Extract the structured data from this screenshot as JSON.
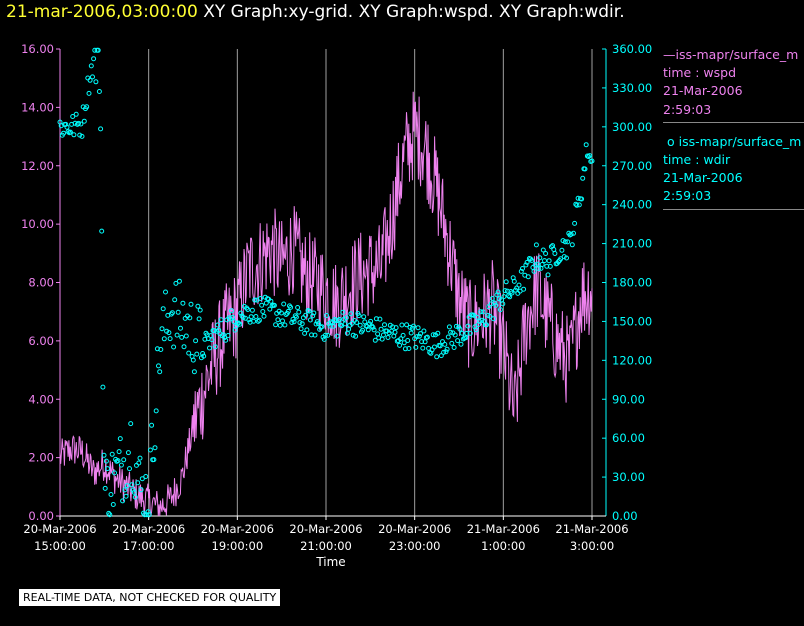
{
  "header": {
    "timestamp": "21-mar-2006,03:00:00",
    "graphs": "XY Graph:xy-grid.  XY Graph:wspd.  XY Graph:wdir."
  },
  "legend": {
    "series1": {
      "name": "iss-mapr/surface_m",
      "line1": "time : wspd",
      "line2": "21-Mar-2006",
      "line3": "2:59:03"
    },
    "series2": {
      "name": "iss-mapr/surface_m",
      "line1": "time : wdir",
      "line2": "21-Mar-2006",
      "line3": "2:59:03"
    }
  },
  "notice": "REAL-TIME DATA, NOT CHECKED FOR QUALITY",
  "colors": {
    "wspd": "#ee82ee",
    "wdir": "#00ffff",
    "grid": "#a0a0a0",
    "axis_text": "#ffffff",
    "title_time": "#ffff33"
  },
  "chart_data": {
    "type": "line",
    "xlabel": "Time",
    "x_unit": "hours since 20-Mar-2006 15:00:00",
    "xlim": [
      0,
      12.1
    ],
    "x_ticks": [
      {
        "value": 0,
        "date": "20-Mar-2006",
        "time": "15:00:00"
      },
      {
        "value": 2,
        "date": "20-Mar-2006",
        "time": "17:00:00"
      },
      {
        "value": 4,
        "date": "20-Mar-2006",
        "time": "19:00:00"
      },
      {
        "value": 6,
        "date": "20-Mar-2006",
        "time": "21:00:00"
      },
      {
        "value": 8,
        "date": "20-Mar-2006",
        "time": "23:00:00"
      },
      {
        "value": 10,
        "date": "21-Mar-2006",
        "time": "1:00:00"
      },
      {
        "value": 12,
        "date": "21-Mar-2006",
        "time": "3:00:00"
      }
    ],
    "y_left": {
      "label": "wspd",
      "ylim": [
        0,
        16
      ],
      "ticks": [
        "0.00",
        "2.00",
        "4.00",
        "6.00",
        "8.00",
        "10.00",
        "12.00",
        "14.00",
        "16.00"
      ]
    },
    "y_right": {
      "label": "wdir",
      "ylim": [
        0,
        360
      ],
      "ticks": [
        "0.00",
        "30.00",
        "60.00",
        "90.00",
        "120.00",
        "150.00",
        "180.00",
        "210.00",
        "240.00",
        "270.00",
        "300.00",
        "330.00",
        "360.00"
      ]
    },
    "series": [
      {
        "name": "wspd",
        "axis": "left",
        "style": "line",
        "x": [
          0,
          0.25,
          0.5,
          0.75,
          1.0,
          1.25,
          1.5,
          1.75,
          2.0,
          2.25,
          2.5,
          2.75,
          3.0,
          3.25,
          3.5,
          3.75,
          4.0,
          4.25,
          4.5,
          4.75,
          5.0,
          5.25,
          5.5,
          5.75,
          6.0,
          6.25,
          6.5,
          6.75,
          7.0,
          7.25,
          7.5,
          7.75,
          8.0,
          8.25,
          8.5,
          8.75,
          9.0,
          9.25,
          9.5,
          9.75,
          10.0,
          10.25,
          10.5,
          10.75,
          11.0,
          11.25,
          11.5,
          11.75,
          12.0
        ],
        "y": [
          2.0,
          2.3,
          2.2,
          1.5,
          1.8,
          1.3,
          1.0,
          0.7,
          0.5,
          0.3,
          0.6,
          1.3,
          3.0,
          4.3,
          5.5,
          6.4,
          7.0,
          8.4,
          8.7,
          9.2,
          8.6,
          9.2,
          8.3,
          8.0,
          7.7,
          7.2,
          7.8,
          8.2,
          8.4,
          8.5,
          10.3,
          12.2,
          13.2,
          12.6,
          11.2,
          9.4,
          7.4,
          6.5,
          6.8,
          7.2,
          5.8,
          3.5,
          6.5,
          7.8,
          6.8,
          5.8,
          5.2,
          7.5,
          7.8
        ],
        "noise": 1.0,
        "spike_max": 16.0
      },
      {
        "name": "wdir",
        "axis": "right",
        "style": "scatter",
        "x": [
          0,
          0.25,
          0.5,
          0.65,
          0.75,
          0.8,
          0.9,
          1.0,
          1.25,
          1.5,
          1.6,
          1.75,
          1.85,
          2.0,
          2.25,
          2.5,
          2.75,
          3.0,
          3.25,
          3.5,
          3.75,
          4.0,
          4.5,
          5.0,
          5.5,
          6.0,
          6.5,
          7.0,
          7.5,
          8.0,
          8.5,
          9.0,
          9.25,
          9.5,
          9.75,
          10.0,
          10.25,
          10.5,
          10.75,
          11.0,
          11.25,
          11.5,
          11.75,
          11.9,
          12.0
        ],
        "y": [
          300,
          300,
          302,
          335,
          350,
          355,
          350,
          20,
          30,
          45,
          58,
          30,
          18,
          15,
          130,
          160,
          150,
          140,
          130,
          140,
          145,
          155,
          160,
          155,
          150,
          145,
          150,
          145,
          140,
          138,
          132,
          140,
          145,
          150,
          160,
          170,
          175,
          185,
          200,
          195,
          205,
          210,
          250,
          285,
          270
        ],
        "noise": 10,
        "points": 460
      }
    ]
  }
}
